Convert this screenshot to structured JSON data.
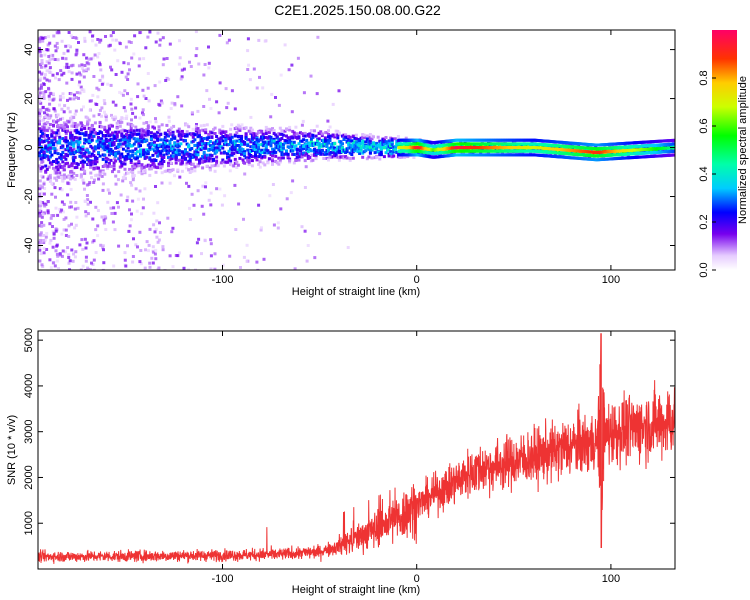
{
  "title": "C2E1.2025.150.08.00.G22",
  "chart_data": [
    {
      "type": "heatmap",
      "xlabel": "Height of straight line (km)",
      "ylabel": "Frequency (Hz)",
      "xlim": [
        -195,
        133
      ],
      "ylim": [
        -50,
        48
      ],
      "xticks": [
        -100,
        0,
        100
      ],
      "yticks": [
        40,
        20,
        0,
        -20,
        -40
      ],
      "xtick_labels": [
        "-100",
        "0",
        "100"
      ],
      "ytick_labels": [
        "40",
        "20",
        "0",
        "-20",
        "-40"
      ],
      "colorbar": {
        "label": "Normalized spectral amplitude",
        "range": [
          0,
          1
        ],
        "ticks": [
          0.0,
          0.2,
          0.4,
          0.6,
          0.8
        ],
        "tick_labels": [
          "0.0",
          "0.2",
          "0.4",
          "0.6",
          "0.8"
        ]
      },
      "ridge": [
        {
          "x": -195,
          "f": 0,
          "amp": 0.3
        },
        {
          "x": -100,
          "f": 0,
          "amp": 0.35
        },
        {
          "x": -50,
          "f": 1,
          "amp": 0.45
        },
        {
          "x": -20,
          "f": 0,
          "amp": 0.55
        },
        {
          "x": -5,
          "f": 0,
          "amp": 0.75
        },
        {
          "x": 0,
          "f": 0,
          "amp": 0.95
        },
        {
          "x": 8,
          "f": -1,
          "amp": 0.6
        },
        {
          "x": 20,
          "f": 0,
          "amp": 0.95
        },
        {
          "x": 60,
          "f": 0,
          "amp": 0.7
        },
        {
          "x": 92,
          "f": -2,
          "amp": 0.9
        },
        {
          "x": 133,
          "f": 0,
          "amp": 0.45
        }
      ]
    },
    {
      "type": "line",
      "xlabel": "Height of straight line (km)",
      "ylabel": "SNR (10 * v/v)",
      "xlim": [
        -195,
        133
      ],
      "ylim": [
        0,
        5200
      ],
      "xticks": [
        -100,
        0,
        100
      ],
      "yticks": [
        1000,
        2000,
        3000,
        4000,
        5000
      ],
      "xtick_labels": [
        "-100",
        "0",
        "100"
      ],
      "ytick_labels": [
        "1000",
        "2000",
        "3000",
        "4000",
        "5000"
      ],
      "color": "#ee3333",
      "series": [
        {
          "x": [
            -195,
            -150,
            -100,
            -70,
            -50,
            -40,
            -30,
            -20,
            -10,
            0,
            10,
            20,
            25,
            30,
            40,
            50,
            60,
            70,
            80,
            88,
            92,
            95,
            97,
            100,
            110,
            120,
            133
          ],
          "values": [
            270,
            280,
            300,
            320,
            380,
            500,
            700,
            900,
            1100,
            1400,
            1650,
            1900,
            2050,
            2150,
            2250,
            2350,
            2450,
            2550,
            2700,
            2750,
            2800,
            2900,
            2950,
            3000,
            3050,
            3150,
            3250
          ]
        }
      ],
      "annotations": [
        {
          "x": 95,
          "min": 460,
          "max": 5150
        }
      ]
    }
  ]
}
